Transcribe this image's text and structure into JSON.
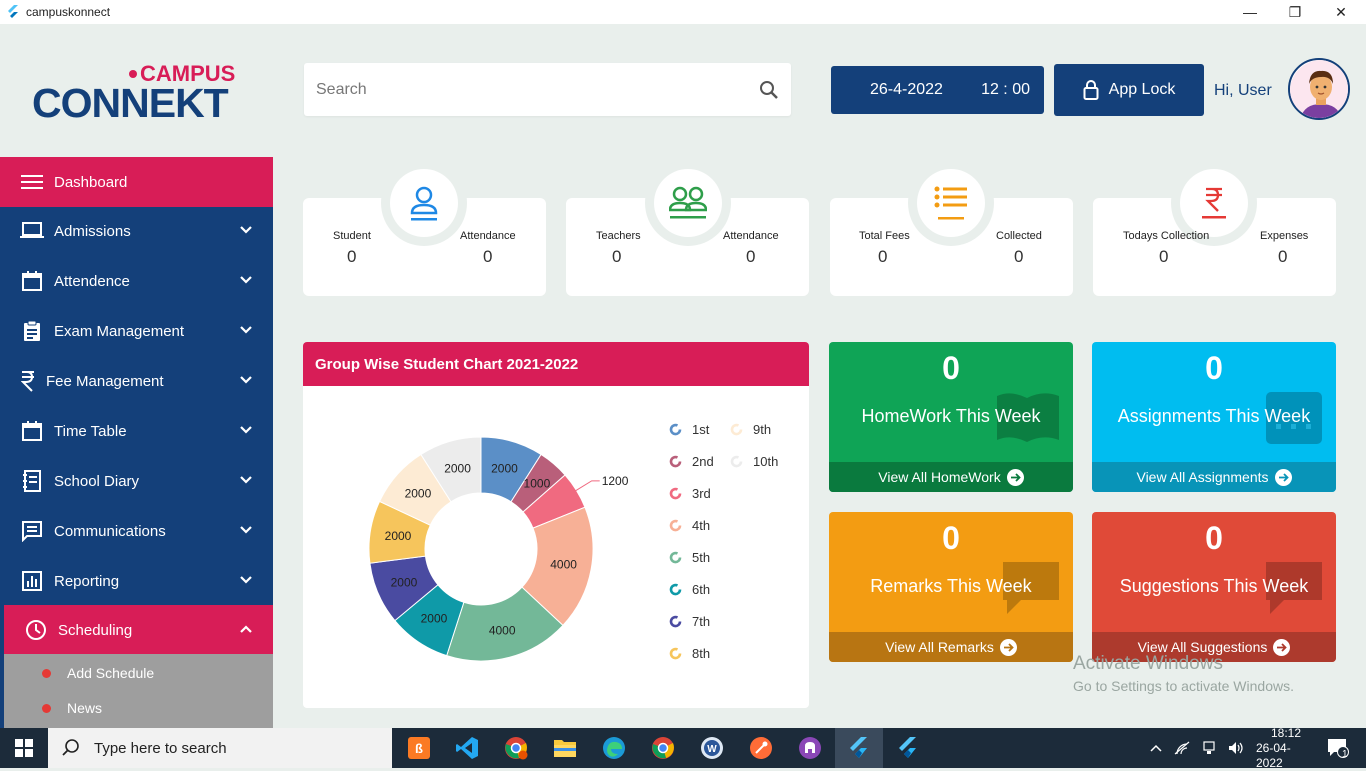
{
  "window": {
    "title": "campuskonnect"
  },
  "logo": {
    "top": "CAMPUS",
    "bottom": "CONNEKT"
  },
  "search": {
    "placeholder": "Search"
  },
  "header": {
    "date": "26-4-2022",
    "time": "12 : 00",
    "app_lock": "App Lock",
    "greeting": "Hi, User"
  },
  "sidebar": {
    "items": [
      {
        "label": "Dashboard",
        "icon": "menu-icon"
      },
      {
        "label": "Admissions",
        "icon": "laptop-icon"
      },
      {
        "label": "Attendence",
        "icon": "calendar-icon"
      },
      {
        "label": "Exam Management",
        "icon": "clipboard-icon"
      },
      {
        "label": "Fee Management",
        "icon": "rupee-icon"
      },
      {
        "label": "Time Table",
        "icon": "calendar-icon"
      },
      {
        "label": "School Diary",
        "icon": "diary-icon"
      },
      {
        "label": "Communications",
        "icon": "chat-icon"
      },
      {
        "label": "Reporting",
        "icon": "bar-chart-icon"
      },
      {
        "label": "Scheduling",
        "icon": "clock-icon"
      }
    ],
    "subitems": [
      {
        "label": "Add Schedule"
      },
      {
        "label": "News"
      }
    ]
  },
  "stats": [
    {
      "left_label": "Student",
      "left_value": "0",
      "right_label": "Attendance",
      "right_value": "0",
      "icon": "person-icon",
      "color": "#1e88e5"
    },
    {
      "left_label": "Teachers",
      "left_value": "0",
      "right_label": "Attendance",
      "right_value": "0",
      "icon": "group-icon",
      "color": "#2e9e4a"
    },
    {
      "left_label": "Total Fees",
      "left_value": "0",
      "right_label": "Collected",
      "right_value": "0",
      "icon": "list-icon",
      "color": "#f39c12"
    },
    {
      "left_label": "Todays Collection",
      "left_value": "0",
      "right_label": "Expenses",
      "right_value": "0",
      "icon": "rupee-icon",
      "color": "#e53935"
    }
  ],
  "chart": {
    "title": "Group Wise Student Chart 2021-2022"
  },
  "chart_data": {
    "type": "pie",
    "title": "Group Wise Student Chart 2021-2022",
    "categories": [
      "1st",
      "2nd",
      "3rd",
      "4th",
      "5th",
      "6th",
      "7th",
      "8th",
      "9th",
      "10th"
    ],
    "values": [
      2000,
      1000,
      1200,
      4000,
      4000,
      2000,
      2000,
      2000,
      2000,
      2000
    ],
    "colors": [
      "#5b8fc7",
      "#b95f7a",
      "#f06a80",
      "#f7b096",
      "#73b898",
      "#0f9aa8",
      "#4a4ba1",
      "#f6c55c",
      "#fdebd4",
      "#ececec"
    ],
    "legend": "right",
    "donut": true
  },
  "widgets": [
    {
      "count": "0",
      "label": "HomeWork This Week",
      "link": "View All HomeWork",
      "color": "#0fa456",
      "foot_color": "#0a7a3e",
      "icon": "book-icon"
    },
    {
      "count": "0",
      "label": "Assignments This Week",
      "link": "View All Assignments",
      "color": "#00bdf0",
      "foot_color": "#0894b8",
      "icon": "keyboard-icon"
    },
    {
      "count": "0",
      "label": "Remarks This Week",
      "link": "View All Remarks",
      "color": "#f39c12",
      "foot_color": "#b87512",
      "icon": "comment-icon"
    },
    {
      "count": "0",
      "label": "Suggestions This Week",
      "link": "View All Suggestions",
      "color": "#e04a38",
      "foot_color": "#ad3a2d",
      "icon": "comment-icon"
    }
  ],
  "watermark": {
    "line1": "Activate Windows",
    "line2": "Go to Settings to activate Windows."
  },
  "taskbar": {
    "search_placeholder": "Type here to search",
    "time": "18:12",
    "date": "26-04-2022",
    "notifications": "1"
  }
}
